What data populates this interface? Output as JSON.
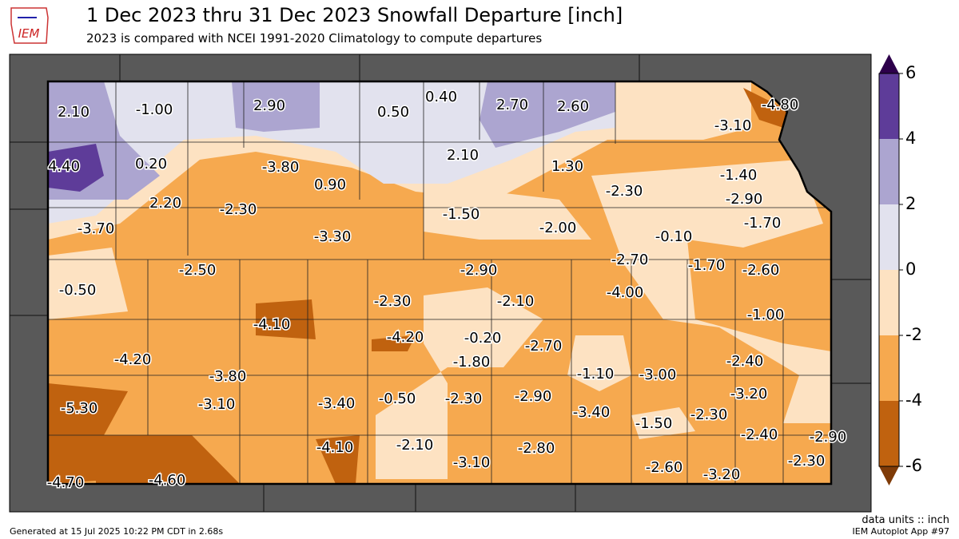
{
  "header": {
    "title": "1 Dec 2023 thru 31 Dec 2023 Snowfall Departure [inch]",
    "subtitle": "2023 is compared with NCEI 1991-2020 Climatology to compute departures",
    "logo": "IEM"
  },
  "map": {
    "labels": [
      "2.10",
      "-1.00",
      "2.90",
      "0.50",
      "0.40",
      "2.70",
      "2.60",
      "-4.80",
      "-3.10",
      "4.40",
      "0.20",
      "-3.80",
      "0.90",
      "2.10",
      "1.30",
      "-1.40",
      "-2.30",
      "-2.90",
      "2.20",
      "-2.30",
      "-1.50",
      "-1.70",
      "-3.70",
      "-3.30",
      "-2.00",
      "-0.10",
      "-2.50",
      "-2.90",
      "-2.70",
      "-1.70",
      "-2.60",
      "-0.50",
      "-2.30",
      "-2.10",
      "-4.00",
      "-1.00",
      "-4.10",
      "-4.20",
      "-0.20",
      "-2.70",
      "-4.20",
      "-1.80",
      "-1.10",
      "-3.00",
      "-2.40",
      "-3.80",
      "-2.90",
      "-3.20",
      "-5.30",
      "-3.10",
      "-3.40",
      "-0.50",
      "-2.30",
      "-3.40",
      "-1.50",
      "-2.30",
      "-2.40",
      "-2.90",
      "-4.10",
      "-2.10",
      "-3.10",
      "-2.80",
      "-2.60",
      "-3.20",
      "-2.30",
      "-4.70",
      "-4.60"
    ]
  },
  "colorbar": {
    "range": [
      -6,
      6
    ],
    "ticks": [
      -6,
      -4,
      -2,
      0,
      2,
      4,
      6
    ],
    "colors": [
      "#c0620f",
      "#f6a94f",
      "#fde2c2",
      "#e2e2ee",
      "#aca5d0",
      "#5e3c99"
    ],
    "under_color": "#7f3b08",
    "over_color": "#2d004b"
  },
  "footer": {
    "units": "data units :: inch",
    "generated": "Generated at 15 Jul 2025 10:22 PM CDT in 2.68s",
    "app": "IEM Autoplot App #97"
  }
}
